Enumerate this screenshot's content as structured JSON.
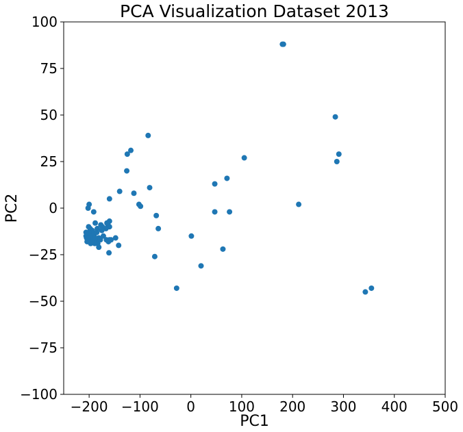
{
  "chart_data": {
    "type": "scatter",
    "title": "PCA Visualization Dataset 2013",
    "xlabel": "PC1",
    "ylabel": "PC2",
    "xlim": [
      -250,
      500
    ],
    "ylim": [
      -100,
      100
    ],
    "xticks": [
      -200,
      -100,
      0,
      100,
      200,
      300,
      400,
      500
    ],
    "yticks": [
      -100,
      -75,
      -50,
      -25,
      0,
      25,
      50,
      75,
      100
    ],
    "grid": false,
    "marker_color": "#1f77b4",
    "points": [
      [
        180,
        88
      ],
      [
        182,
        88
      ],
      [
        284,
        49
      ],
      [
        291,
        29
      ],
      [
        287,
        25
      ],
      [
        212,
        2
      ],
      [
        343,
        -45
      ],
      [
        355,
        -43
      ],
      [
        105,
        27
      ],
      [
        71,
        16
      ],
      [
        47,
        13
      ],
      [
        76,
        -2
      ],
      [
        47,
        -2
      ],
      [
        63,
        -22
      ],
      [
        1,
        -15
      ],
      [
        20,
        -31
      ],
      [
        -28,
        -43
      ],
      [
        -84,
        39
      ],
      [
        -118,
        31
      ],
      [
        -125,
        29
      ],
      [
        -126,
        20
      ],
      [
        -140,
        9
      ],
      [
        -112,
        8
      ],
      [
        -81,
        11
      ],
      [
        -102,
        2
      ],
      [
        -99,
        1
      ],
      [
        -68,
        -4
      ],
      [
        -64,
        -11
      ],
      [
        -71,
        -26
      ],
      [
        -160,
        5
      ],
      [
        -200,
        2
      ],
      [
        -202,
        0
      ],
      [
        -191,
        -2
      ],
      [
        -160,
        -7
      ],
      [
        -163,
        -9
      ],
      [
        -165,
        -8
      ],
      [
        -160,
        -10
      ],
      [
        -167,
        -11
      ],
      [
        -188,
        -8
      ],
      [
        -184,
        -11
      ],
      [
        -177,
        -9
      ],
      [
        -174,
        -10
      ],
      [
        -175,
        -12
      ],
      [
        -172,
        -15
      ],
      [
        -166,
        -17
      ],
      [
        -162,
        -18
      ],
      [
        -160,
        -17
      ],
      [
        -157,
        -17
      ],
      [
        -148,
        -16
      ],
      [
        -142,
        -20
      ],
      [
        -161,
        -24
      ],
      [
        -181,
        -16
      ],
      [
        -186,
        -18
      ],
      [
        -183,
        -19
      ],
      [
        -181,
        -21
      ],
      [
        -178,
        -17
      ],
      [
        -190,
        -14
      ],
      [
        -194,
        -12
      ],
      [
        -198,
        -11
      ],
      [
        -201,
        -10
      ],
      [
        -197,
        -13
      ],
      [
        -204,
        -14
      ],
      [
        -206,
        -15
      ],
      [
        -205,
        -16
      ],
      [
        -203,
        -17
      ],
      [
        -204,
        -18
      ],
      [
        -200,
        -18
      ],
      [
        -198,
        -17
      ],
      [
        -196,
        -16
      ],
      [
        -193,
        -15
      ],
      [
        -191,
        -17
      ],
      [
        -189,
        -19
      ],
      [
        -188,
        -16
      ],
      [
        -199,
        -15
      ],
      [
        -202,
        -16
      ],
      [
        -197,
        -19
      ],
      [
        -195,
        -18
      ],
      [
        -201,
        -13
      ],
      [
        -206,
        -13
      ],
      [
        -185,
        -13
      ]
    ]
  }
}
